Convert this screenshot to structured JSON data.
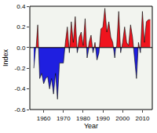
{
  "chart_data": {
    "type": "area",
    "x_label": "Year",
    "y_label": "Index",
    "x": [
      1955,
      1956,
      1957,
      1958,
      1959,
      1960,
      1961,
      1962,
      1963,
      1964,
      1965,
      1966,
      1967,
      1968,
      1969,
      1970,
      1971,
      1972,
      1973,
      1974,
      1975,
      1976,
      1977,
      1978,
      1979,
      1980,
      1981,
      1982,
      1983,
      1984,
      1985,
      1986,
      1987,
      1988,
      1989,
      1990,
      1991,
      1992,
      1993,
      1994,
      1995,
      1996,
      1997,
      1998,
      1999,
      2000,
      2001,
      2002,
      2003,
      2004,
      2005,
      2006,
      2007,
      2008,
      2009,
      2010,
      2011,
      2012,
      2013,
      2014
    ],
    "values": [
      -0.2,
      -0.05,
      0.22,
      -0.3,
      -0.25,
      -0.35,
      -0.3,
      -0.28,
      -0.4,
      -0.3,
      -0.45,
      -0.25,
      -0.5,
      -0.15,
      -0.15,
      -0.15,
      0.05,
      0.2,
      -0.05,
      0.25,
      0.05,
      0.3,
      -0.05,
      0.1,
      0.15,
      0.02,
      0.28,
      -0.1,
      0.05,
      0.12,
      -0.05,
      0.05,
      -0.12,
      -0.05,
      0.18,
      0.2,
      0.38,
      0.15,
      0.25,
      0.1,
      0.05,
      -0.1,
      0.02,
      0.35,
      -0.05,
      0.05,
      0.2,
      0.05,
      0.02,
      0.22,
      0.1,
      -0.1,
      -0.3,
      0.05,
      -0.05,
      0.35,
      0.05,
      0.25,
      0.27,
      0.27
    ],
    "color": {
      "above": "#f0141e",
      "below": "#1f1fe0"
    },
    "xlim": [
      1953,
      2015
    ],
    "xticks": [
      1960,
      1970,
      1980,
      1990,
      2000,
      2010
    ],
    "ylim": [
      -0.6,
      0.4
    ],
    "yticks": [
      -0.6,
      -0.4,
      -0.2,
      {
        "value": 0,
        "label": "0.0"
      },
      0.2,
      0.4
    ],
    "grid": false
  }
}
